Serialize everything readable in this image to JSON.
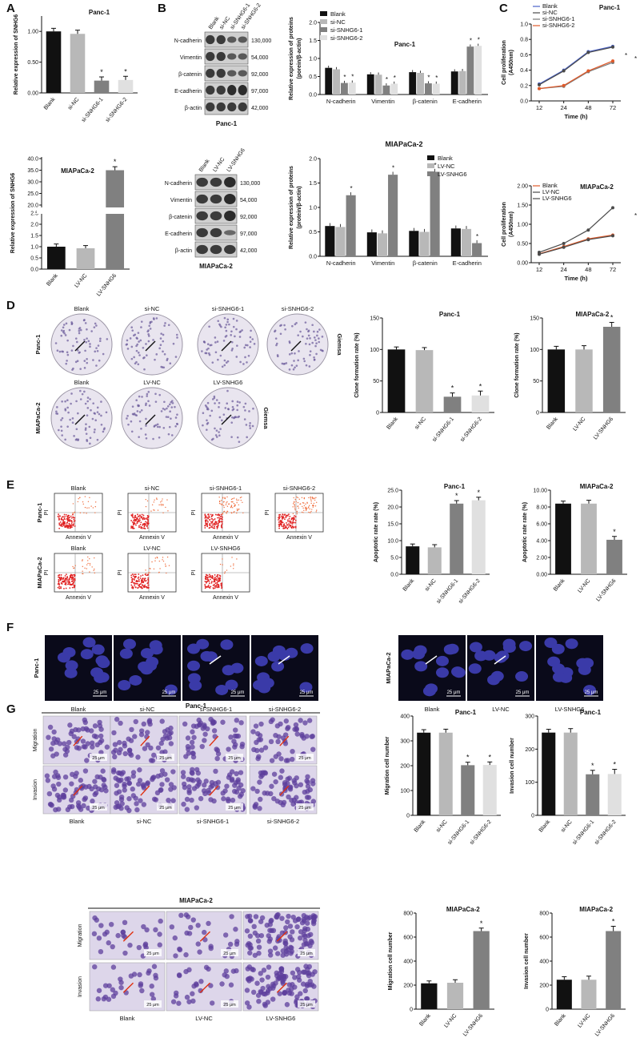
{
  "panels": {
    "A": "A",
    "B": "B",
    "C": "C",
    "D": "D",
    "E": "E",
    "F": "F",
    "G": "G"
  },
  "colors": {
    "blank": "#111111",
    "ctrl": "#b8b8b8",
    "grp1": "#808080",
    "grp2": "#e0e0e0",
    "lv": "#808080",
    "c_blank": "#4a62c9",
    "c_si1": "#4a4a4a",
    "c_si2": "#e05a2a"
  },
  "text": {
    "panc1": "Panc-1",
    "mia": "MIAPaCa-2",
    "star": "*",
    "giemsa": "Giemsa",
    "annexin": "Annexin V",
    "pi": "PI",
    "scale": "25 μm",
    "migration": "Migration",
    "invasion": "Invasion",
    "blank": "Blank",
    "sinc": "si-NC",
    "si1": "si-SNHG6-1",
    "si2": "si-SNHG6-2",
    "lvnc": "LV-NC",
    "lvsnhg6": "LV-SNHG6",
    "time": "Time (h)",
    "cellprolif": "Cell proliferation",
    "a450": "(A450nm)",
    "relexp": "Relative expression of SNHG6",
    "relprot1": "Relative expression of proteins",
    "relprot2": "(porein/β-actin)",
    "relprot2b": "(protein/β-actin)",
    "cloneRate": "Clone formation rate (%)",
    "apopRate": "Apoptotic rate rate (%)",
    "migNum": "Migration cell number",
    "invNum": "Invasion cell number",
    "dashes": "—"
  },
  "blots": {
    "panc": {
      "header": [
        "Blank",
        "si-NC",
        "si-SNHG6-1",
        "si-SNHG6-2"
      ],
      "rows": [
        {
          "name": "N-cadherin",
          "kda": "130,000"
        },
        {
          "name": "Vimentin",
          "kda": "54,000"
        },
        {
          "name": "β-catenin",
          "kda": "92,000"
        },
        {
          "name": "E-cadherin",
          "kda": "97,000"
        },
        {
          "name": "β-actin",
          "kda": "42,000"
        }
      ]
    },
    "mia": {
      "header": [
        "Blank",
        "LV-NC",
        "LV-SNHG6"
      ],
      "rows": [
        {
          "name": "N-cadherin",
          "kda": "130,000"
        },
        {
          "name": "Vimentin",
          "kda": "54,000"
        },
        {
          "name": "β-catenin",
          "kda": "92,000"
        },
        {
          "name": "E-cadherin",
          "kda": "97,000"
        },
        {
          "name": "β-actin",
          "kda": "42,000"
        }
      ]
    }
  },
  "chart_data": [
    {
      "id": "A1",
      "type": "bar",
      "title": "Panc-1",
      "ylabel": "Relative expression of SNHG6",
      "categories": [
        "Blank",
        "si-NC",
        "si-SNHG6-1",
        "si-SNHG6-2"
      ],
      "values": [
        1.0,
        0.96,
        0.2,
        0.21
      ],
      "errors": [
        0.05,
        0.06,
        0.06,
        0.06
      ],
      "ylim": [
        0,
        1.25
      ],
      "yticks": [
        "0.00",
        "0.50",
        "1.00"
      ],
      "ytickvals": [
        0,
        0.5,
        1.0
      ],
      "stars": [
        false,
        false,
        true,
        true
      ]
    },
    {
      "id": "A2",
      "type": "bar",
      "title": "MIAPaCa-2",
      "ylabel": "Relative expression of SNHG6",
      "categories": [
        "Blank",
        "LV-NC",
        "LV-SNHG6"
      ],
      "values": [
        1.0,
        0.93,
        35.0
      ],
      "errors": [
        0.12,
        0.12,
        1.5
      ],
      "broken_axis": true,
      "yticks": [
        "0.0",
        "0.5",
        "1.0",
        "1.5",
        "2.0",
        "2.5",
        "20.0",
        "25.0",
        "30.0",
        "35.0",
        "40.0"
      ],
      "stars": [
        false,
        false,
        true
      ]
    },
    {
      "id": "B1",
      "type": "bar",
      "title": "Panc-1",
      "ylabel": "Relative expression of proteins (porein/β-actin)",
      "categories": [
        "N-cadherin",
        "Vimentin",
        "β-catenin",
        "E-cadherin"
      ],
      "legend": "top-left",
      "series": [
        {
          "name": "Blank",
          "values": [
            0.74,
            0.56,
            0.62,
            0.64
          ]
        },
        {
          "name": "si-NC",
          "values": [
            0.7,
            0.55,
            0.6,
            0.65
          ]
        },
        {
          "name": "si-SNHG6-1",
          "values": [
            0.32,
            0.25,
            0.31,
            1.33
          ]
        },
        {
          "name": "si-SNHG6-2",
          "values": [
            0.33,
            0.3,
            0.3,
            1.35
          ]
        }
      ],
      "ylim": [
        0,
        2.0
      ],
      "yticks": [
        "0.0",
        "0.5",
        "1.0",
        "1.5",
        "2.0"
      ],
      "stars": [
        [
          false,
          false,
          true,
          true
        ],
        [
          false,
          false,
          true,
          true
        ],
        [
          false,
          false,
          true,
          true
        ],
        [
          false,
          false,
          true,
          true
        ]
      ]
    },
    {
      "id": "B2",
      "type": "bar",
      "title": "MIAPaCa-2",
      "ylabel": "Relative expression of proteins (protein/β-actin)",
      "categories": [
        "N-cadherin",
        "Vimentin",
        "β-catenin",
        "E-cadherin"
      ],
      "legend": "top-right",
      "series": [
        {
          "name": "Blank",
          "values": [
            0.62,
            0.49,
            0.52,
            0.57
          ]
        },
        {
          "name": "LV-NC",
          "values": [
            0.6,
            0.47,
            0.5,
            0.56
          ]
        },
        {
          "name": "LV-SNHG6",
          "values": [
            1.25,
            1.67,
            1.73,
            0.27
          ]
        }
      ],
      "ylim": [
        0,
        2.0
      ],
      "yticks": [
        "0.0",
        "0.5",
        "1.0",
        "1.5",
        "2.0"
      ],
      "stars": [
        [
          false,
          false,
          true
        ],
        [
          false,
          false,
          true
        ],
        [
          false,
          false,
          true
        ],
        [
          false,
          false,
          true
        ]
      ]
    },
    {
      "id": "C1",
      "type": "line",
      "title": "Panc-1",
      "ylabel": "Cell proliferation (A450nm)",
      "xlabel": "Time (h)",
      "x": [
        12,
        24,
        48,
        72
      ],
      "series": [
        {
          "name": "Blank",
          "values": [
            0.22,
            0.4,
            0.64,
            0.71
          ]
        },
        {
          "name": "si-NC",
          "values": [
            0.21,
            0.39,
            0.63,
            0.7
          ]
        },
        {
          "name": "si-SNHG6-1",
          "values": [
            0.16,
            0.19,
            0.38,
            0.5
          ]
        },
        {
          "name": "si-SNHG6-2",
          "values": [
            0.16,
            0.2,
            0.39,
            0.52
          ]
        }
      ],
      "ylim": [
        0,
        1.0
      ],
      "yticks": [
        "0.0",
        "0.2",
        "0.4",
        "0.6",
        "0.8",
        "1.0"
      ]
    },
    {
      "id": "C2",
      "type": "line",
      "title": "MIAPaCa-2",
      "ylabel": "Cell proliferation (A450nm)",
      "xlabel": "Time (h)",
      "x": [
        12,
        24,
        48,
        72
      ],
      "series": [
        {
          "name": "Blank",
          "values": [
            0.23,
            0.42,
            0.62,
            0.72
          ]
        },
        {
          "name": "LV-NC",
          "values": [
            0.22,
            0.4,
            0.6,
            0.7
          ]
        },
        {
          "name": "LV-SNHG6",
          "values": [
            0.27,
            0.5,
            0.85,
            1.43
          ]
        }
      ],
      "ylim": [
        0,
        2.0
      ],
      "yticks": [
        "0.00",
        "0.50",
        "1.00",
        "1.50",
        "2.00"
      ]
    },
    {
      "id": "D1",
      "type": "bar",
      "title": "Panc-1",
      "ylabel": "Clone formation rate (%)",
      "categories": [
        "Blank",
        "si-NC",
        "si-SNHG6-1",
        "si-SNHG6-2"
      ],
      "values": [
        100,
        99,
        25,
        27
      ],
      "errors": [
        4,
        4,
        6,
        7
      ],
      "ylim": [
        0,
        150
      ],
      "yticks": [
        "0",
        "50",
        "100",
        "150"
      ],
      "stars": [
        false,
        false,
        true,
        true
      ]
    },
    {
      "id": "D2",
      "type": "bar",
      "title": "MIAPaCa-2",
      "ylabel": "Clone formation rate (%)",
      "categories": [
        "Blank",
        "LV-NC",
        "LV-SNHG6"
      ],
      "values": [
        100,
        100,
        136
      ],
      "errors": [
        5,
        6,
        7
      ],
      "ylim": [
        0,
        150
      ],
      "yticks": [
        "0",
        "50",
        "100",
        "150"
      ],
      "stars": [
        false,
        false,
        true
      ]
    },
    {
      "id": "E1",
      "type": "bar",
      "title": "Panc-1",
      "ylabel": "Apoptotic rate rate (%)",
      "categories": [
        "Blank",
        "si-NC",
        "si-SNHG6-1",
        "si-SNHG6-2"
      ],
      "values": [
        8.3,
        8.0,
        21.0,
        22.0
      ],
      "errors": [
        0.7,
        0.8,
        0.9,
        0.9
      ],
      "ylim": [
        0,
        25
      ],
      "yticks": [
        "0.0",
        "5.0",
        "10.0",
        "15.0",
        "20.0",
        "25.0"
      ],
      "stars": [
        false,
        false,
        true,
        true
      ]
    },
    {
      "id": "E2",
      "type": "bar",
      "title": "MIAPaCa-2",
      "ylabel": "Apoptotic rate rate (%)",
      "categories": [
        "Blank",
        "LV-NC",
        "LV-SNHG6"
      ],
      "values": [
        8.4,
        8.4,
        4.1
      ],
      "errors": [
        0.3,
        0.4,
        0.4
      ],
      "ylim": [
        0,
        10
      ],
      "yticks": [
        "0.00",
        "2.00",
        "4.00",
        "6.00",
        "8.00",
        "10.00"
      ],
      "stars": [
        false,
        false,
        true
      ]
    },
    {
      "id": "G1",
      "type": "bar",
      "title": "Panc-1",
      "ylabel": "Migration cell number",
      "categories": [
        "Blank",
        "si-NC",
        "si-SNHG6-1",
        "si-SNHG6-2"
      ],
      "values": [
        333,
        333,
        202,
        203
      ],
      "errors": [
        12,
        14,
        12,
        12
      ],
      "ylim": [
        0,
        400
      ],
      "yticks": [
        "0",
        "100",
        "200",
        "300",
        "400"
      ],
      "stars": [
        false,
        false,
        true,
        true
      ]
    },
    {
      "id": "G2",
      "type": "bar",
      "title": "Panc-1",
      "ylabel": "Invasion cell number",
      "categories": [
        "Blank",
        "si-NC",
        "si-SNHG6-1",
        "si-SNHG6-2"
      ],
      "values": [
        250,
        250,
        124,
        125
      ],
      "errors": [
        10,
        12,
        12,
        14
      ],
      "ylim": [
        0,
        300
      ],
      "yticks": [
        "0",
        "100",
        "200",
        "300"
      ],
      "stars": [
        false,
        false,
        true,
        true
      ]
    },
    {
      "id": "G3",
      "type": "bar",
      "title": "MIAPaCa-2",
      "ylabel": "Migration cell number",
      "categories": [
        "Blank",
        "LV-NC",
        "LV-SNHG6"
      ],
      "values": [
        215,
        220,
        650
      ],
      "errors": [
        20,
        25,
        25
      ],
      "ylim": [
        0,
        800
      ],
      "yticks": [
        "0",
        "200",
        "400",
        "600",
        "800"
      ],
      "stars": [
        false,
        false,
        true
      ]
    },
    {
      "id": "G4",
      "type": "bar",
      "title": "MIAPaCa-2",
      "ylabel": "Invasion cell number",
      "categories": [
        "Blank",
        "LV-NC",
        "LV-SNHG6"
      ],
      "values": [
        245,
        245,
        650
      ],
      "errors": [
        25,
        30,
        40
      ],
      "ylim": [
        0,
        800
      ],
      "yticks": [
        "0",
        "200",
        "400",
        "600",
        "800"
      ],
      "stars": [
        false,
        false,
        true
      ]
    }
  ]
}
